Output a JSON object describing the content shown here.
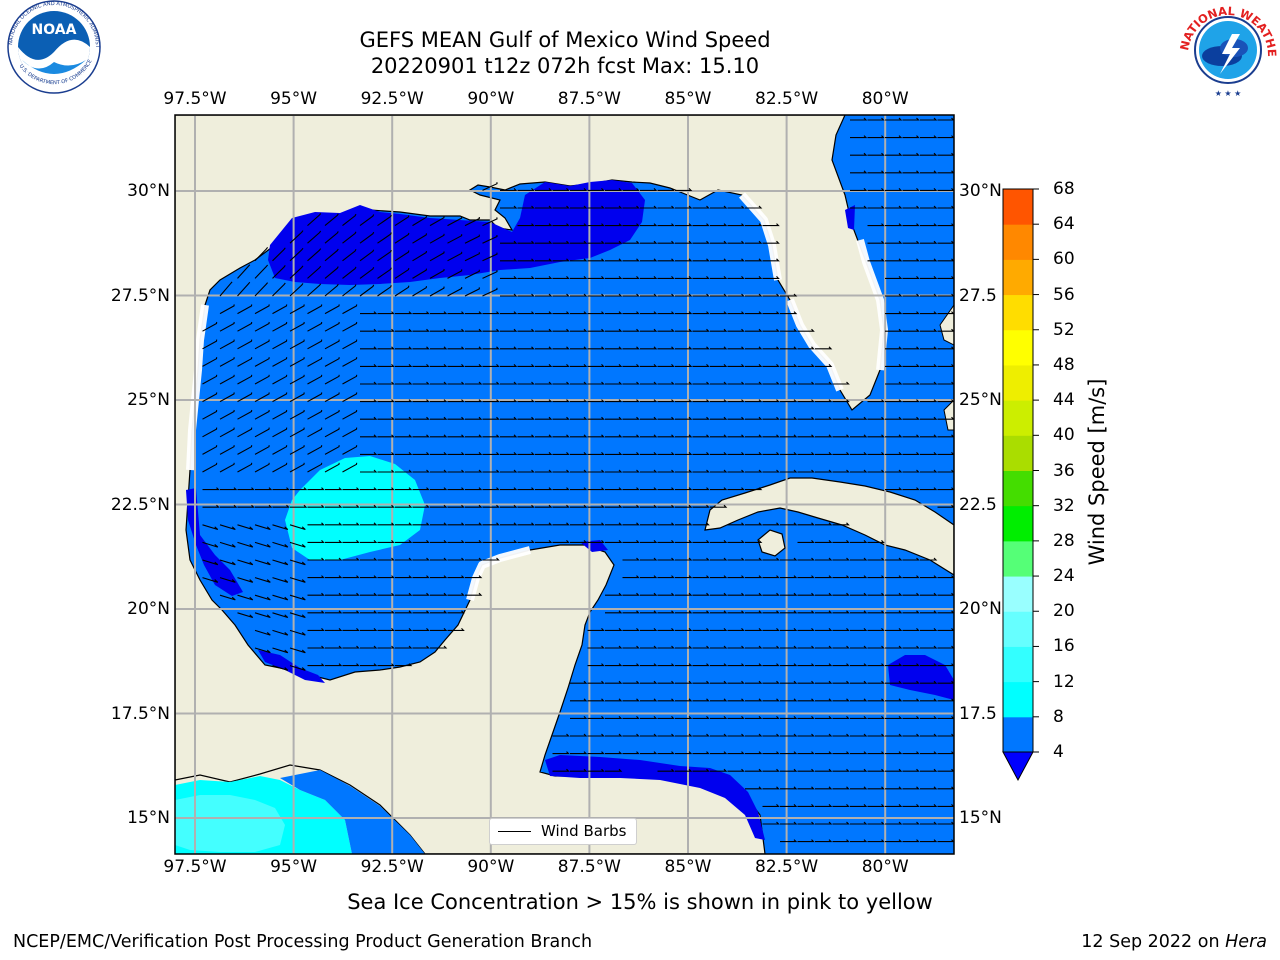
{
  "title_line1": "GEFS MEAN Gulf of Mexico Wind Speed",
  "title_line2": "20220901 t12z 072h fcst   Max: 15.10",
  "lon_ticks": [
    {
      "lon": -97.5,
      "label": "97.5°W"
    },
    {
      "lon": -95,
      "label": "95°W"
    },
    {
      "lon": -92.5,
      "label": "92.5°W"
    },
    {
      "lon": -90,
      "label": "90°W"
    },
    {
      "lon": -87.5,
      "label": "87.5°W"
    },
    {
      "lon": -85,
      "label": "85°W"
    },
    {
      "lon": -82.5,
      "label": "82.5°W"
    },
    {
      "lon": -80,
      "label": "80°W"
    }
  ],
  "lat_ticks": [
    {
      "lat": 30,
      "label": "30°N",
      "right": "30°N"
    },
    {
      "lat": 27.5,
      "label": "27.5°N",
      "right": "27.5"
    },
    {
      "lat": 25,
      "label": "25°N",
      "right": "25°N"
    },
    {
      "lat": 22.5,
      "label": "22.5°N",
      "right": "22.5"
    },
    {
      "lat": 20,
      "label": "20°N",
      "right": "20°N"
    },
    {
      "lat": 17.5,
      "label": "17.5°N",
      "right": "17.5"
    },
    {
      "lat": 15,
      "label": "15°N",
      "right": "15°N"
    }
  ],
  "colorbar": {
    "label": "Wind Speed [m/s]",
    "ticks": [
      "4",
      "8",
      "12",
      "16",
      "20",
      "24",
      "28",
      "32",
      "36",
      "40",
      "44",
      "48",
      "52",
      "56",
      "60",
      "64",
      "68"
    ],
    "colors": [
      "#0077ff",
      "#00ffff",
      "#33ffff",
      "#66ffff",
      "#99ffff",
      "#55ff77",
      "#00ee00",
      "#44dd00",
      "#aadd00",
      "#ccee00",
      "#eeee00",
      "#ffff00",
      "#ffdd00",
      "#ffaa00",
      "#ff8800",
      "#ff5500",
      "#ff2200",
      "#ff0000"
    ],
    "extend_color": "#0000ff"
  },
  "map_colors": {
    "land": "#efeedc",
    "ocean_4_8": "#0077ff",
    "ocean_lt4": "#0000ee",
    "ocean_8_12": "#00ffff",
    "ocean_12_16": "#44ffff",
    "grid": "#b0b0b0"
  },
  "legend": {
    "label": "Wind Barbs"
  },
  "caption": "Sea Ice Concentration > 15% is shown in pink to yellow",
  "footer_left": "NCEP/EMC/Verification Post Processing Product Generation Branch",
  "footer_date": "12 Sep 2022 on",
  "footer_host": "Hera",
  "logos": {
    "left": "NOAA",
    "right": "NATIONAL WEATHER SERVICE"
  }
}
